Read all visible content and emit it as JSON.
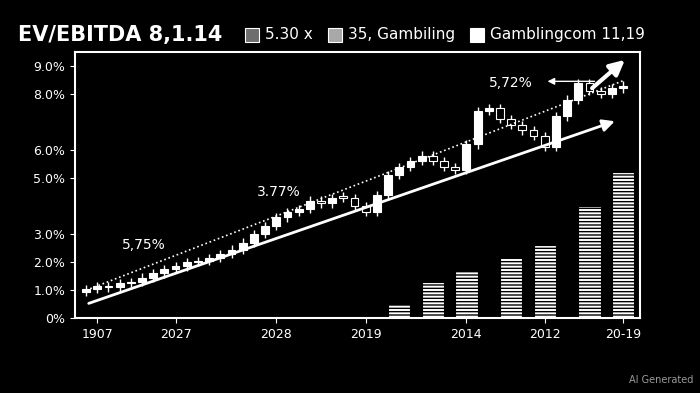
{
  "chart_data": {
    "type": "candlestick",
    "title": "EV/EBITDA 8,1.14",
    "header_items": [
      {
        "label": "5.30 x",
        "color": "#6e6e6e"
      },
      {
        "label": "35, Gambiling",
        "color": "#a8a8a8"
      },
      {
        "label": "Gamblingcom 11,19",
        "color": "#ffffff"
      }
    ],
    "categories": [
      null,
      "1907",
      null,
      null,
      null,
      null,
      null,
      null,
      "2027",
      null,
      null,
      null,
      null,
      null,
      null,
      null,
      null,
      "2028",
      null,
      null,
      null,
      null,
      null,
      null,
      null,
      "2019",
      null,
      null,
      null,
      null,
      null,
      null,
      null,
      null,
      "2014",
      null,
      null,
      null,
      null,
      null,
      null,
      "2012",
      null,
      null,
      null,
      null,
      null,
      null,
      "20-19"
    ],
    "series": [
      {
        "type": "candlestick",
        "color": "#ffffff",
        "open": [
          0.95,
          1.05,
          1.15,
          1.1,
          1.25,
          1.3,
          1.45,
          1.6,
          1.75,
          1.85,
          2.0,
          2.05,
          2.15,
          2.3,
          2.45,
          2.7,
          3.0,
          3.3,
          3.6,
          3.8,
          3.9,
          4.2,
          4.1,
          4.35,
          4.3,
          4.0,
          3.8,
          4.4,
          5.1,
          5.4,
          5.6,
          5.8,
          5.6,
          5.4,
          5.3,
          6.2,
          7.4,
          7.5,
          7.1,
          6.9,
          6.7,
          6.5,
          6.1,
          7.2,
          7.8,
          8.4,
          8.1,
          8.0,
          8.2
        ],
        "high": [
          1.2,
          1.3,
          1.3,
          1.4,
          1.45,
          1.6,
          1.75,
          1.9,
          2.0,
          2.15,
          2.2,
          2.3,
          2.45,
          2.6,
          2.85,
          3.15,
          3.45,
          3.75,
          3.95,
          4.05,
          4.35,
          4.35,
          4.45,
          4.5,
          4.45,
          4.15,
          4.55,
          5.25,
          5.55,
          5.75,
          5.95,
          5.95,
          5.75,
          5.55,
          6.35,
          7.55,
          7.65,
          7.65,
          7.25,
          7.05,
          6.85,
          6.65,
          7.35,
          7.95,
          8.55,
          8.55,
          8.25,
          8.35,
          8.45
        ],
        "low": [
          0.8,
          0.9,
          0.95,
          0.95,
          1.1,
          1.15,
          1.3,
          1.45,
          1.6,
          1.7,
          1.85,
          1.9,
          2.0,
          2.15,
          2.3,
          2.55,
          2.85,
          3.15,
          3.45,
          3.65,
          3.75,
          3.95,
          3.95,
          4.15,
          3.85,
          3.65,
          3.65,
          4.25,
          4.95,
          5.25,
          5.45,
          5.45,
          5.25,
          5.15,
          5.15,
          6.05,
          7.25,
          6.95,
          6.75,
          6.55,
          6.35,
          5.95,
          5.95,
          7.05,
          7.65,
          7.95,
          7.85,
          7.85,
          8.05
        ],
        "close": [
          1.05,
          1.15,
          1.1,
          1.25,
          1.3,
          1.45,
          1.6,
          1.75,
          1.85,
          2.0,
          2.05,
          2.15,
          2.3,
          2.45,
          2.7,
          3.0,
          3.3,
          3.6,
          3.8,
          3.9,
          4.2,
          4.1,
          4.3,
          4.3,
          4.0,
          3.8,
          4.4,
          5.1,
          5.4,
          5.6,
          5.8,
          5.6,
          5.4,
          5.3,
          6.2,
          7.4,
          7.5,
          7.1,
          6.9,
          6.7,
          6.5,
          6.1,
          7.2,
          7.8,
          8.4,
          8.1,
          8.0,
          8.2,
          8.3
        ]
      },
      {
        "type": "line",
        "x": [
          0,
          48
        ],
        "values": [
          1.0,
          8.47
        ],
        "color": "#ffffff",
        "line_style": "dotted"
      },
      {
        "type": "line",
        "x": [
          0,
          47.5
        ],
        "values": [
          0.5,
          7.06
        ],
        "color": "#ffffff",
        "line_style": "solid",
        "marker": "arrow"
      },
      {
        "type": "bar",
        "color": "#ffffff",
        "values": [
          null,
          null,
          null,
          null,
          null,
          null,
          null,
          null,
          null,
          null,
          null,
          null,
          null,
          null,
          null,
          null,
          null,
          null,
          null,
          null,
          null,
          null,
          null,
          null,
          null,
          null,
          null,
          null,
          0.5,
          null,
          null,
          1.3,
          null,
          null,
          1.7,
          null,
          null,
          null,
          2.2,
          null,
          null,
          2.6,
          null,
          null,
          null,
          4.0,
          null,
          null,
          5.2
        ]
      }
    ],
    "ylim": [
      0,
      9.5
    ],
    "yticks": [
      {
        "value": 0,
        "label": "0%"
      },
      {
        "value": 1,
        "label": "1.0%"
      },
      {
        "value": 2,
        "label": "2.0%"
      },
      {
        "value": 3,
        "label": "3.0%"
      },
      {
        "value": 5,
        "label": "5.0%"
      },
      {
        "value": 6,
        "label": "6.0%"
      },
      {
        "value": 8,
        "label": "8.0%"
      },
      {
        "value": 9,
        "label": "9.0%"
      }
    ],
    "annotations": [
      {
        "text": "5,75%"
      },
      {
        "text": "3.77%"
      },
      {
        "text": "5,72%"
      }
    ],
    "watermark": "AI Generated",
    "grid": false
  }
}
